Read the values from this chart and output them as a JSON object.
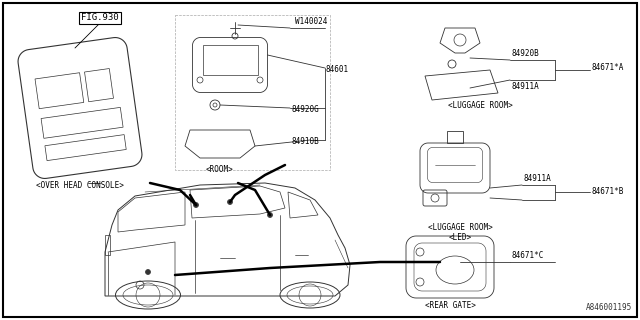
{
  "bg_color": "#ffffff",
  "fig_width": 6.4,
  "fig_height": 3.2,
  "dpi": 100,
  "watermark": "A846001195",
  "lc": "#333333",
  "parts": {
    "overhead_label": "<OVER HEAD CONSOLE>",
    "room_label": "<ROOM>",
    "luggage_a_label": "<LUGGAGE ROOM>",
    "luggage_b_label1": "<LUGGAGE ROOM>",
    "luggage_b_label2": "<LED>",
    "rear_gate_label": "<REAR GATE>",
    "fig930": "FIG.930",
    "w140024": "W140024",
    "n84601": "84601",
    "n84920g": "84920G",
    "n84910b": "84910B",
    "n84920b": "84920B",
    "n84671a": "84671*A",
    "n84911a1": "84911A",
    "n84911a2": "84911A",
    "n84671b": "84671*B",
    "n84671c": "84671*C"
  }
}
